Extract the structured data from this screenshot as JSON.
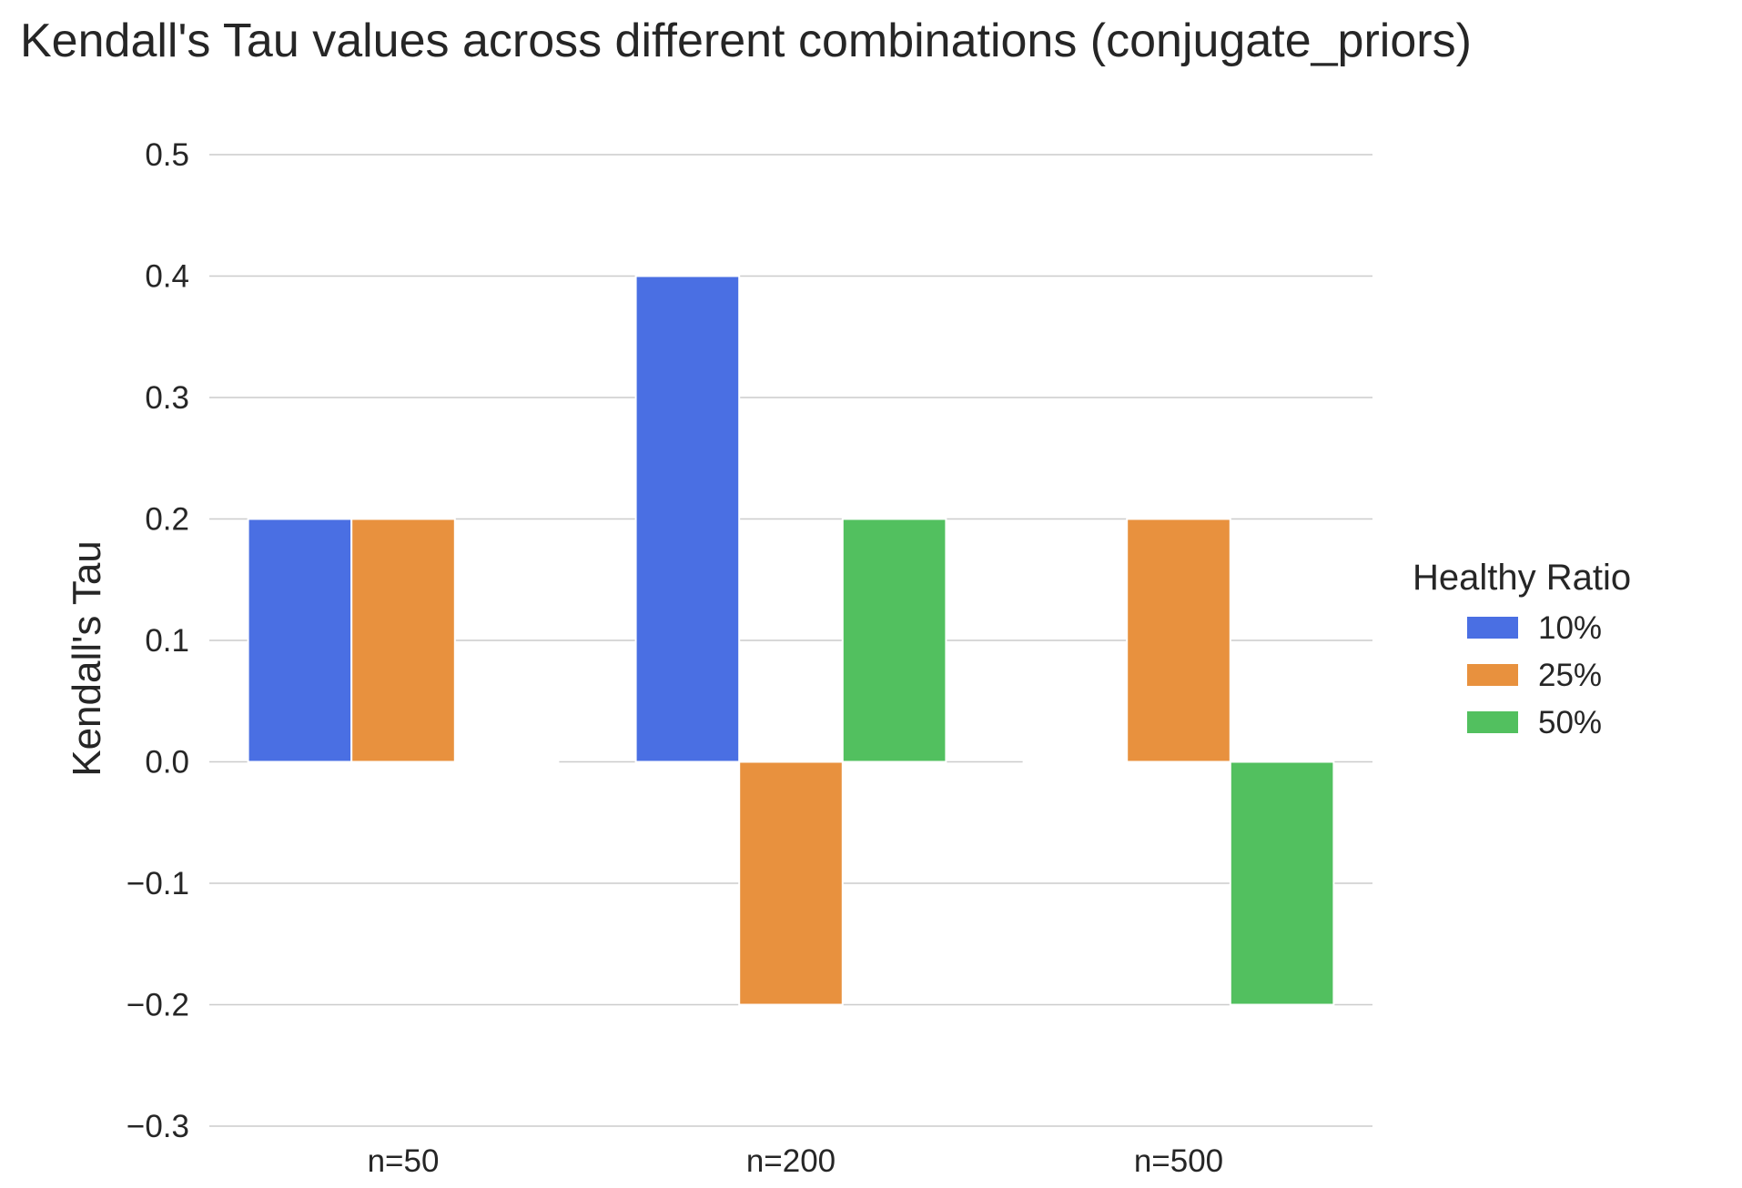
{
  "chart_data": {
    "type": "bar",
    "title": "Kendall's Tau values across different combinations (conjugate_priors)",
    "xlabel": "",
    "ylabel": "Kendall's Tau",
    "categories": [
      "n=50",
      "n=200",
      "n=500"
    ],
    "series": [
      {
        "name": "10%",
        "color": "#4a6fe3",
        "values": [
          0.2,
          0.4,
          0.0
        ]
      },
      {
        "name": "25%",
        "color": "#e8913e",
        "values": [
          0.2,
          -0.2,
          0.2
        ]
      },
      {
        "name": "50%",
        "color": "#52c05f",
        "values": [
          0.0,
          0.2,
          -0.2
        ]
      }
    ],
    "ylim": [
      -0.3,
      0.5
    ],
    "yticks": [
      -0.3,
      -0.2,
      -0.1,
      0.0,
      0.1,
      0.2,
      0.3,
      0.4,
      0.5
    ],
    "ytick_labels": [
      "−0.3",
      "−0.2",
      "−0.1",
      "0.0",
      "0.1",
      "0.2",
      "0.3",
      "0.4",
      "0.5"
    ],
    "grid": "horizontal",
    "legend": {
      "title": "Healthy Ratio",
      "placement": "right"
    }
  }
}
